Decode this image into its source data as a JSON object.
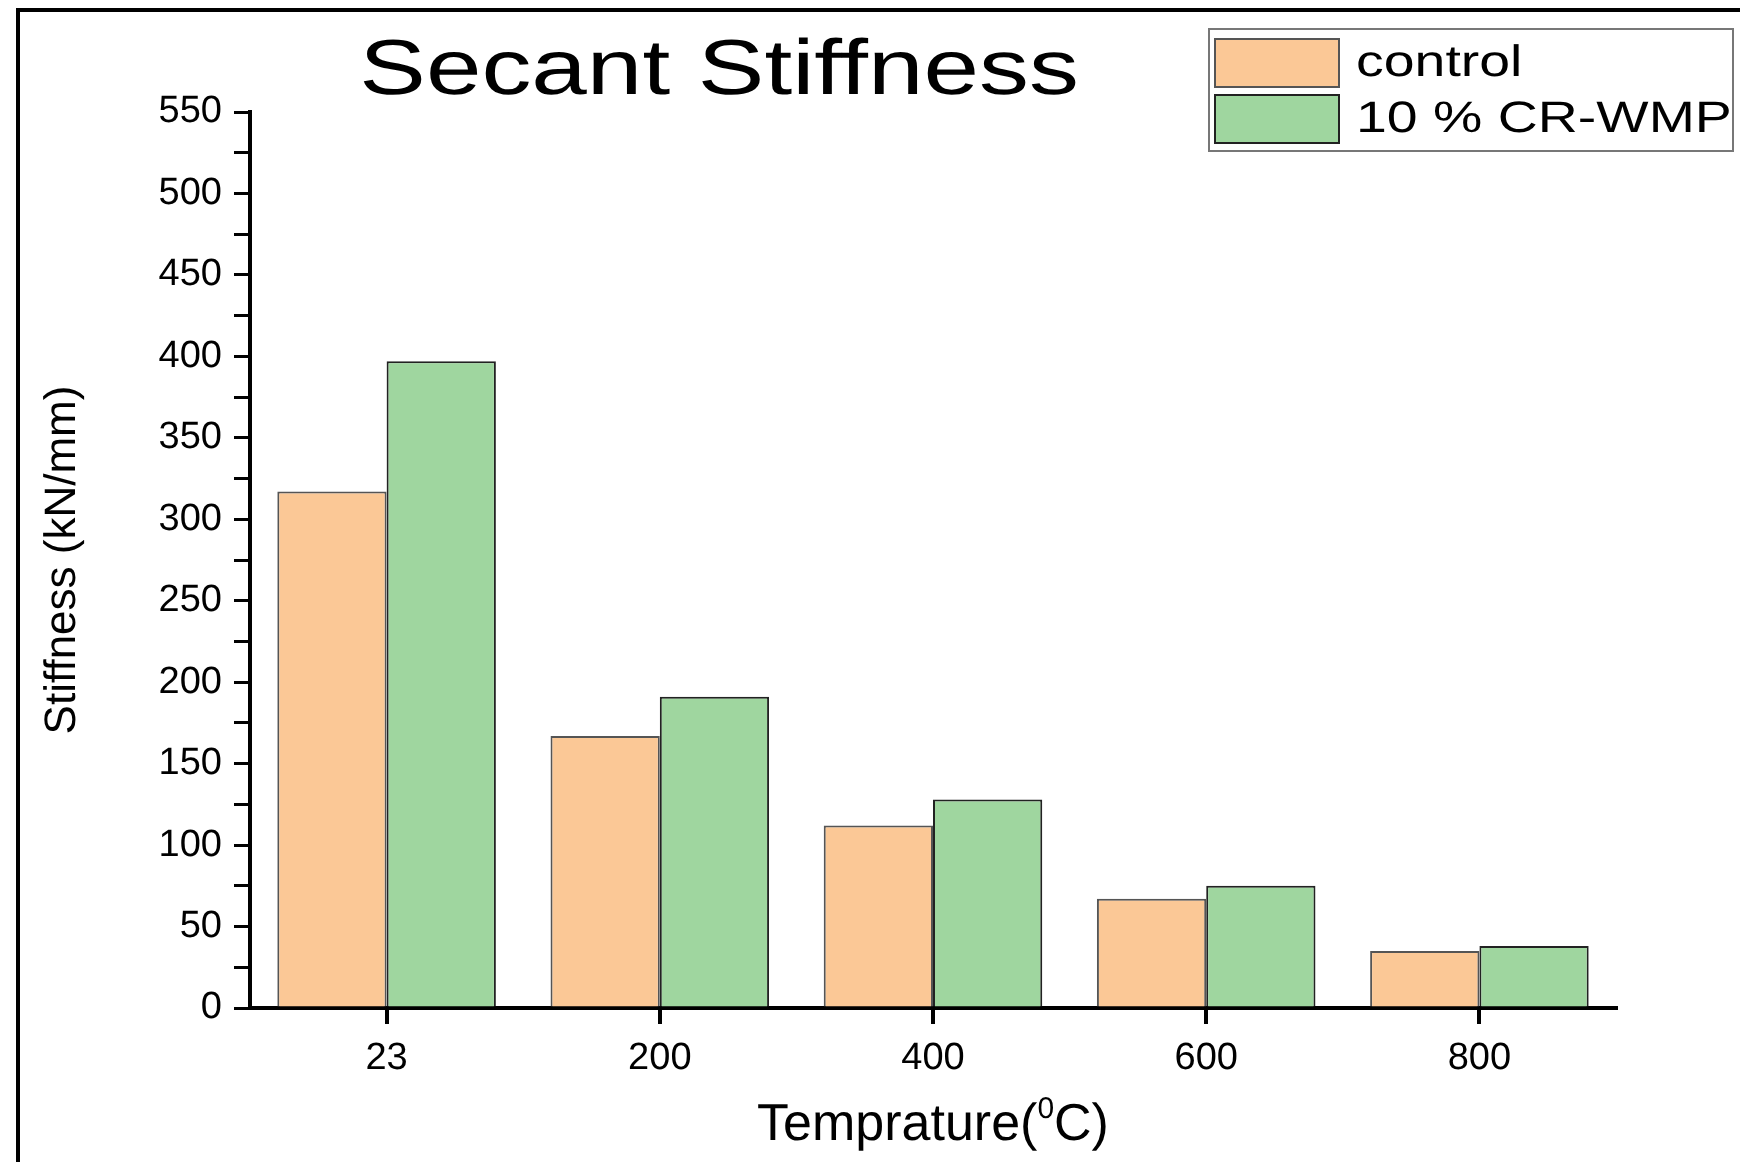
{
  "chart_data": {
    "type": "bar",
    "title": "Secant Stiffness",
    "xlabel": "Temprature($^{0}$C)",
    "ylabel": "Stiffness (kN/mm)",
    "categories": [
      "23",
      "200",
      "400",
      "600",
      "800"
    ],
    "series": [
      {
        "name": "control",
        "color": "#fbc896",
        "values": [
          317,
          167,
          112,
          67,
          35
        ]
      },
      {
        "name": "10 % CR-WMP",
        "color": "#9fd69f",
        "values": [
          397,
          191,
          128,
          75,
          38
        ]
      }
    ],
    "ylim": [
      0,
      550
    ],
    "yticks": [
      0,
      {
        "value": 25,
        "label": null
      },
      50,
      {
        "value": 75,
        "label": null
      },
      100,
      {
        "value": 125,
        "label": null
      },
      150,
      {
        "value": 175,
        "label": null
      },
      200,
      {
        "value": 225,
        "label": null
      },
      250,
      {
        "value": 275,
        "label": null
      },
      300,
      {
        "value": 325,
        "label": null
      },
      350,
      {
        "value": 375,
        "label": null
      },
      400,
      {
        "value": 425,
        "label": null
      },
      450,
      {
        "value": 475,
        "label": null
      },
      500,
      {
        "value": 525,
        "label": null
      },
      550
    ],
    "legend": "top right"
  }
}
